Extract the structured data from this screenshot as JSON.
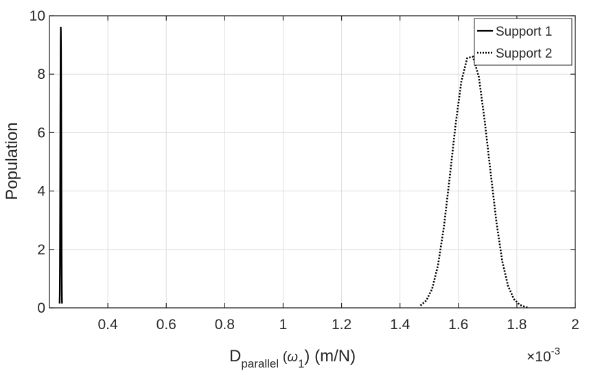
{
  "chart_data": {
    "type": "line",
    "xlabel_main": "D",
    "xlabel_sub": "parallel",
    "xlabel_arg_open": " (",
    "xlabel_omega": "ω",
    "xlabel_omega_sub": "1",
    "xlabel_rest": ") (m/N)",
    "ylabel": "Population",
    "x_exponent_base": "×10",
    "x_exponent_power": "-3",
    "xlim": [
      0.2,
      2.0
    ],
    "ylim": [
      0,
      10
    ],
    "x_scale_factor": 0.001,
    "xticks": [
      0.4,
      0.6,
      0.8,
      1.0,
      1.2,
      1.4,
      1.6,
      1.8,
      2.0
    ],
    "xtick_labels": [
      "0.4",
      "0.6",
      "0.8",
      "1",
      "1.2",
      "1.4",
      "1.6",
      "1.8",
      "2"
    ],
    "yticks": [
      0,
      2,
      4,
      6,
      8,
      10
    ],
    "ytick_labels": [
      "0",
      "2",
      "4",
      "6",
      "8",
      "10"
    ],
    "grid": true,
    "legend_position": "top-right",
    "series": [
      {
        "name": "Support 1",
        "style": "solid",
        "color": "#000000",
        "x": [
          0.2349,
          0.2355,
          0.2361,
          0.2366,
          0.2372,
          0.2378,
          0.2384,
          0.239,
          0.2396,
          0.2402,
          0.2408,
          0.2413,
          0.2419,
          0.2425,
          0.2431
        ],
        "y": [
          0.15,
          0.5,
          1.4,
          3.0,
          5.2,
          7.4,
          9.0,
          9.6,
          9.0,
          7.4,
          5.2,
          3.0,
          1.4,
          0.5,
          0.15
        ]
      },
      {
        "name": "Support 2",
        "style": "dotted",
        "color": "#000000",
        "x": [
          1.47,
          1.49,
          1.51,
          1.53,
          1.55,
          1.57,
          1.59,
          1.61,
          1.63,
          1.65,
          1.67,
          1.69,
          1.71,
          1.73,
          1.75,
          1.77,
          1.79,
          1.81,
          1.83,
          1.84
        ],
        "y": [
          0.08,
          0.25,
          0.65,
          1.45,
          2.75,
          4.45,
          6.25,
          7.75,
          8.55,
          8.6,
          7.9,
          6.4,
          4.65,
          2.95,
          1.6,
          0.75,
          0.3,
          0.1,
          0.03,
          0.0
        ]
      }
    ]
  }
}
